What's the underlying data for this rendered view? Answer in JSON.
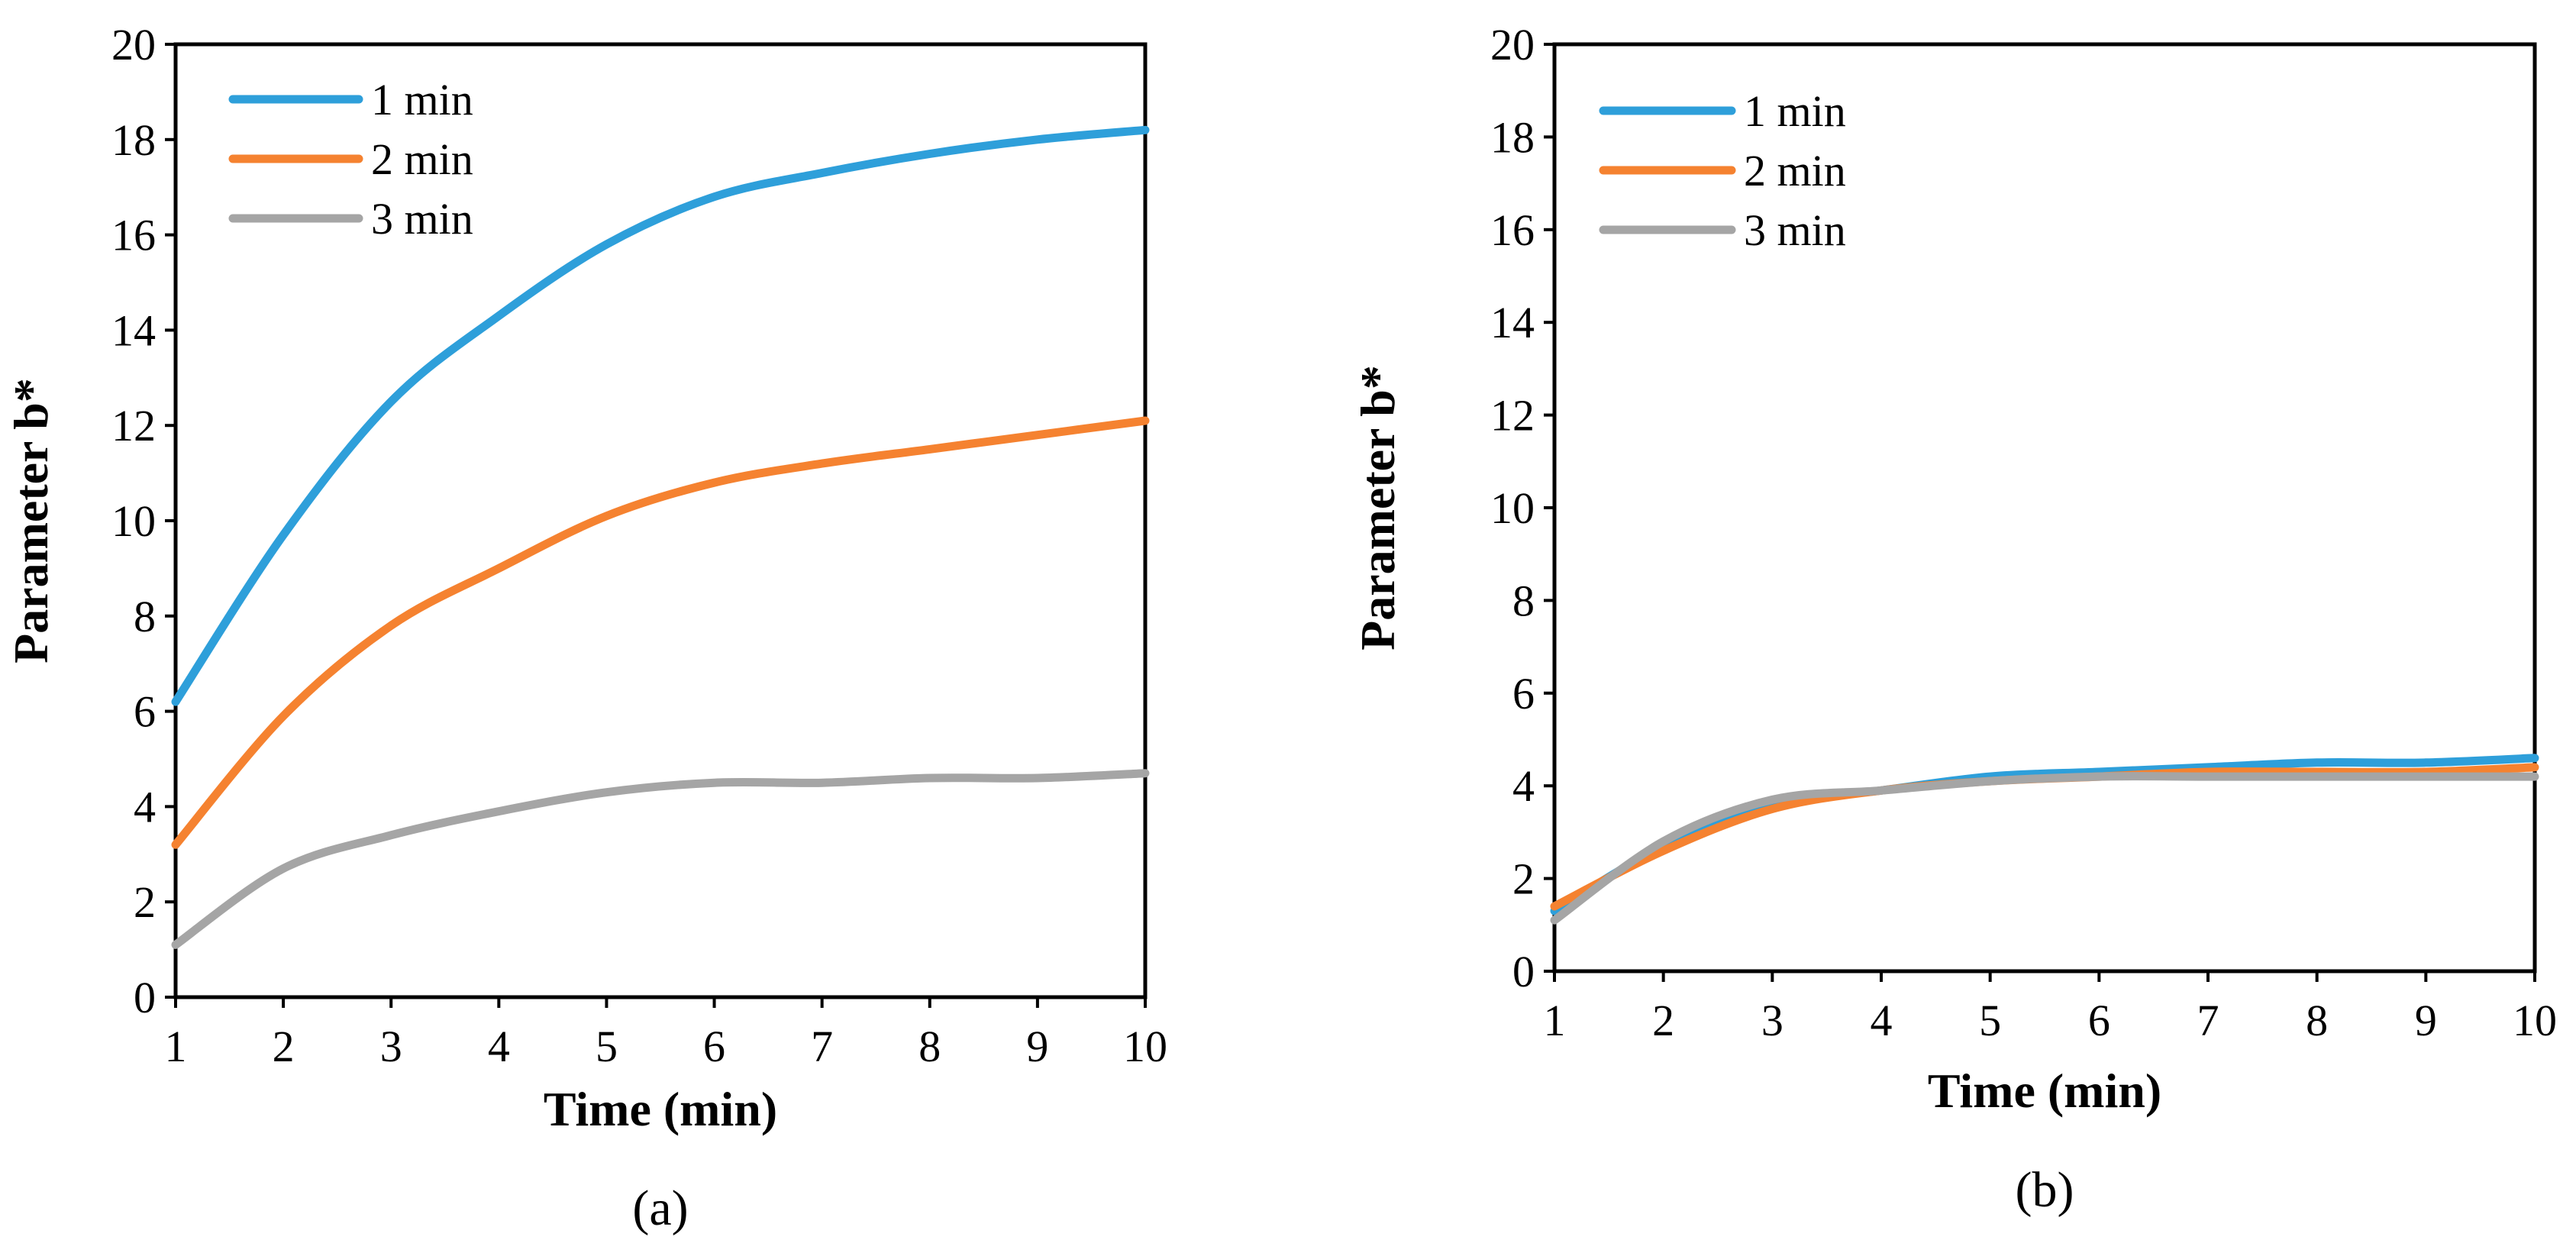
{
  "chart_data": [
    {
      "type": "line",
      "panel_label": "(a)",
      "panel_letter": "a",
      "xlabel": "Time (min)",
      "ylabel": "Parameter b*",
      "xlim": [
        1,
        10
      ],
      "ylim": [
        0,
        20
      ],
      "x": [
        1,
        2,
        3,
        4,
        5,
        6,
        7,
        8,
        9,
        10
      ],
      "x_ticks": [
        1,
        2,
        3,
        4,
        5,
        6,
        7,
        8,
        9,
        10
      ],
      "y_ticks": [
        0,
        2,
        4,
        6,
        8,
        10,
        12,
        14,
        16,
        18,
        20
      ],
      "grid": false,
      "legend_position": "top-left",
      "series": [
        {
          "name": "1 min",
          "color": "#2E9FDA",
          "values": [
            6.2,
            9.7,
            12.5,
            14.3,
            15.8,
            16.8,
            17.3,
            17.7,
            18.0,
            18.2
          ]
        },
        {
          "name": "2 min",
          "color": "#F58230",
          "values": [
            3.2,
            5.9,
            7.8,
            9.0,
            10.1,
            10.8,
            11.2,
            11.5,
            11.8,
            12.1
          ]
        },
        {
          "name": "3 min",
          "color": "#A5A5A5",
          "values": [
            1.1,
            2.7,
            3.4,
            3.9,
            4.3,
            4.5,
            4.5,
            4.6,
            4.6,
            4.7
          ]
        }
      ]
    },
    {
      "type": "line",
      "panel_label": "(b)",
      "panel_letter": "b",
      "xlabel": "Time (min)",
      "ylabel": "Parameter b*",
      "xlim": [
        1,
        10
      ],
      "ylim": [
        0,
        20
      ],
      "x": [
        1,
        2,
        3,
        4,
        5,
        6,
        7,
        8,
        9,
        10
      ],
      "x_ticks": [
        1,
        2,
        3,
        4,
        5,
        6,
        7,
        8,
        9,
        10
      ],
      "y_ticks": [
        0,
        2,
        4,
        6,
        8,
        10,
        12,
        14,
        16,
        18,
        20
      ],
      "grid": false,
      "legend_position": "top-left",
      "series": [
        {
          "name": "1 min",
          "color": "#2E9FDA",
          "values": [
            1.3,
            2.7,
            3.6,
            3.9,
            4.2,
            4.3,
            4.4,
            4.5,
            4.5,
            4.6
          ]
        },
        {
          "name": "2 min",
          "color": "#F58230",
          "values": [
            1.4,
            2.6,
            3.5,
            3.9,
            4.1,
            4.2,
            4.3,
            4.3,
            4.3,
            4.4
          ]
        },
        {
          "name": "3 min",
          "color": "#A5A5A5",
          "values": [
            1.1,
            2.8,
            3.7,
            3.9,
            4.1,
            4.2,
            4.2,
            4.2,
            4.2,
            4.2
          ]
        }
      ]
    }
  ]
}
